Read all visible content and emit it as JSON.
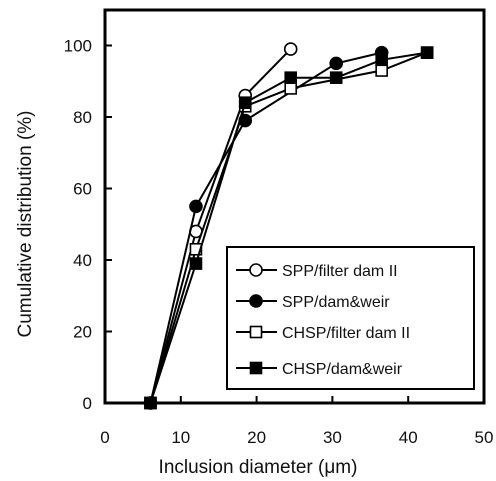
{
  "chart_data": {
    "type": "line",
    "xlabel": "Inclusion diameter (μm)",
    "ylabel": "Cumulative distribution (%)",
    "xlim": [
      0,
      50
    ],
    "ylim": [
      0,
      110
    ],
    "xticks": [
      "0",
      "10",
      "20",
      "30",
      "40",
      "50"
    ],
    "yticks": [
      "0",
      "20",
      "40",
      "60",
      "80",
      "100"
    ],
    "grid": false,
    "legend_position": "bottom-right",
    "series": [
      {
        "name": "SPP/filter dam II",
        "marker": "open-circle",
        "x": [
          6,
          12,
          18.5,
          24.5
        ],
        "y": [
          0,
          48,
          86,
          99
        ]
      },
      {
        "name": "SPP/dam&weir",
        "marker": "filled-circle",
        "x": [
          6,
          12,
          18.5,
          30.5,
          36.5
        ],
        "y": [
          0,
          55,
          79,
          95,
          98
        ]
      },
      {
        "name": "CHSP/filter dam II",
        "marker": "open-square",
        "x": [
          6,
          12,
          18.5,
          24.5,
          36.5,
          42.5
        ],
        "y": [
          0,
          43,
          83,
          88,
          93,
          98
        ]
      },
      {
        "name": "CHSP/dam&weir",
        "marker": "filled-square",
        "x": [
          6,
          12,
          18.5,
          24.5,
          30.5,
          36.5,
          42.5
        ],
        "y": [
          0,
          39,
          84,
          91,
          91,
          96,
          98
        ]
      }
    ]
  }
}
